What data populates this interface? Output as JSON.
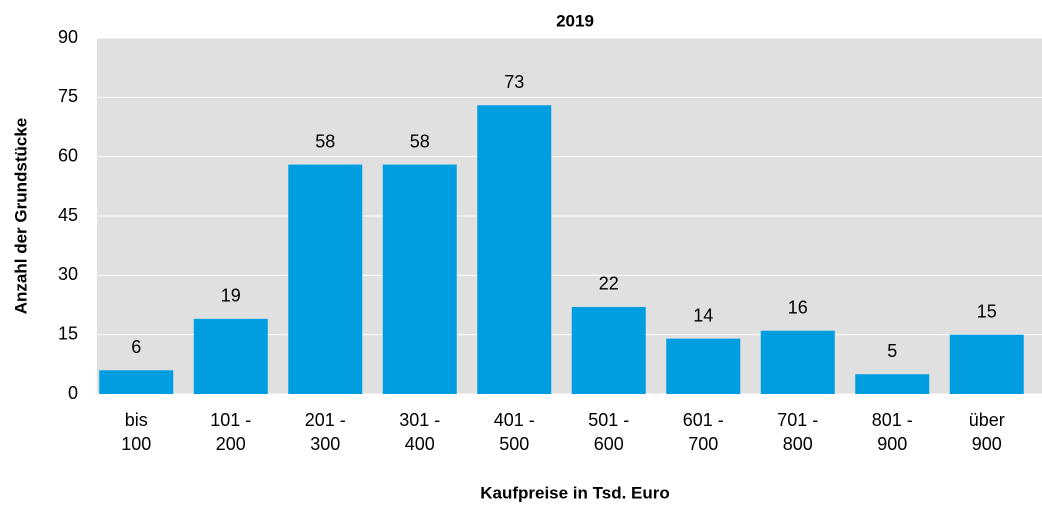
{
  "chart_data": {
    "type": "bar",
    "title": "2019",
    "x_label": "Kaufpreise in Tsd. Euro",
    "y_label": "Anzahl der Grundstücke",
    "categories": [
      "bis 100",
      "101 - 200",
      "201 - 300",
      "301 - 400",
      "401 - 500",
      "501 - 600",
      "601 - 700",
      "701 - 800",
      "801 - 900",
      "über 900"
    ],
    "values": [
      6,
      19,
      58,
      58,
      73,
      22,
      14,
      16,
      5,
      15
    ],
    "color": "#009ee0",
    "ylim": [
      0,
      90
    ],
    "yticks": [
      0,
      15,
      30,
      45,
      60,
      75,
      90
    ],
    "grid": true
  }
}
